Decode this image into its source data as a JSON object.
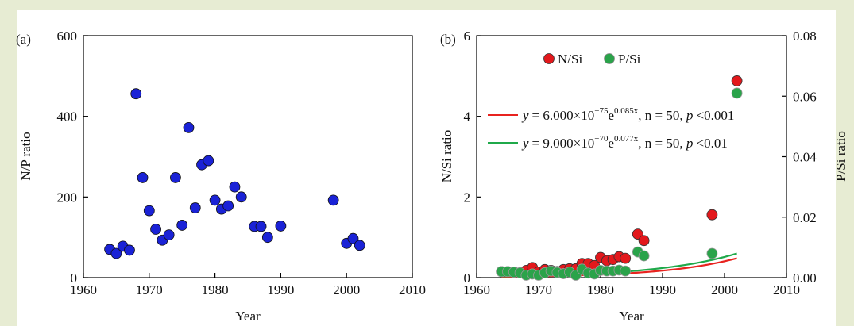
{
  "colors": {
    "background": "#e7ecd3",
    "panel": "#ffffff",
    "np_marker": "#1a22d6",
    "nsi_marker": "#e3181c",
    "psi_marker": "#2aa34a",
    "nsi_fit": "#e8231f",
    "psi_fit": "#1fa94a"
  },
  "chart_data": [
    {
      "type": "scatter",
      "panel_label": "(a)",
      "xlabel": "Year",
      "ylabel": "N/P ratio",
      "xlim": [
        1960,
        2010
      ],
      "ylim": [
        0,
        600
      ],
      "xticks": [
        1960,
        1970,
        1980,
        1990,
        2000,
        2010
      ],
      "yticks": [
        0,
        200,
        400,
        600
      ],
      "grid": false,
      "series": [
        {
          "x": [
            1964,
            1965,
            1966,
            1967,
            1968,
            1969,
            1970,
            1971,
            1972,
            1973,
            1974,
            1975,
            1976,
            1977,
            1978,
            1979,
            1980,
            1981,
            1982,
            1983,
            1984,
            1986,
            1987,
            1988,
            1990,
            1998,
            2000,
            2001,
            2002
          ],
          "y": [
            70,
            60,
            78,
            68,
            456,
            248,
            166,
            120,
            93,
            106,
            248,
            130,
            372,
            173,
            280,
            290,
            192,
            170,
            178,
            225,
            200,
            127,
            127,
            100,
            128,
            192,
            85,
            97,
            80
          ]
        }
      ]
    },
    {
      "type": "scatter",
      "panel_label": "(b)",
      "xlabel": "Year",
      "ylabel": "N/Si ratio",
      "y2label": "P/Si ratio",
      "xlim": [
        1960,
        2010
      ],
      "ylim": [
        0,
        6
      ],
      "y2lim": [
        0,
        0.08
      ],
      "xticks": [
        1960,
        1970,
        1980,
        1990,
        2000,
        2010
      ],
      "yticks": [
        0,
        2,
        4,
        6
      ],
      "y2ticks": [
        "0.00",
        "0.02",
        "0.04",
        "0.06",
        "0.08"
      ],
      "grid": false,
      "legend_position": "top-left",
      "series": [
        {
          "name": "N/Si",
          "axis": "left",
          "x": [
            1964,
            1965,
            1966,
            1967,
            1968,
            1969,
            1970,
            1971,
            1972,
            1973,
            1974,
            1975,
            1976,
            1977,
            1978,
            1979,
            1980,
            1981,
            1982,
            1983,
            1984,
            1986,
            1987,
            1998,
            2002
          ],
          "y": [
            0.15,
            0.15,
            0.14,
            0.12,
            0.18,
            0.25,
            0.14,
            0.2,
            0.18,
            0.15,
            0.2,
            0.22,
            0.22,
            0.35,
            0.35,
            0.3,
            0.5,
            0.42,
            0.45,
            0.52,
            0.48,
            1.08,
            0.92,
            1.56,
            4.88
          ]
        },
        {
          "name": "P/Si",
          "axis": "right",
          "x": [
            1964,
            1965,
            1966,
            1967,
            1968,
            1969,
            1970,
            1971,
            1972,
            1973,
            1974,
            1975,
            1976,
            1977,
            1978,
            1979,
            1980,
            1981,
            1982,
            1983,
            1984,
            1986,
            1987,
            1998,
            2002
          ],
          "y": [
            0.002,
            0.002,
            0.0018,
            0.0016,
            0.0008,
            0.0012,
            0.0008,
            0.0016,
            0.0022,
            0.0017,
            0.0013,
            0.0018,
            0.0008,
            0.0028,
            0.0015,
            0.0012,
            0.0024,
            0.0022,
            0.0022,
            0.0025,
            0.0022,
            0.0085,
            0.0072,
            0.008,
            0.061
          ]
        }
      ],
      "fits": [
        {
          "axis": "left",
          "color_key": "nsi_fit",
          "a": 6e-75,
          "b": 0.085,
          "x_from": 1964,
          "x_to": 2002,
          "eq_y": "y",
          "eq_eq": "= 6.000×10",
          "eq_exp": "−75",
          "eq_e": "e",
          "eq_pow": "0.085x",
          "eq_n": ", n",
          "eq_n_val": " = 50, ",
          "eq_p": "p",
          "eq_p_val": " <0.001"
        },
        {
          "axis": "right",
          "color_key": "psi_fit",
          "a": 9e-70,
          "b": 0.077,
          "x_from": 1964,
          "x_to": 2002,
          "eq_y": "y",
          "eq_eq": "= 9.000×10",
          "eq_exp": "−70",
          "eq_e": "e",
          "eq_pow": "0.077x",
          "eq_n": ", n",
          "eq_n_val": " = 50, ",
          "eq_p": "p",
          "eq_p_val": " <0.01"
        }
      ]
    }
  ]
}
